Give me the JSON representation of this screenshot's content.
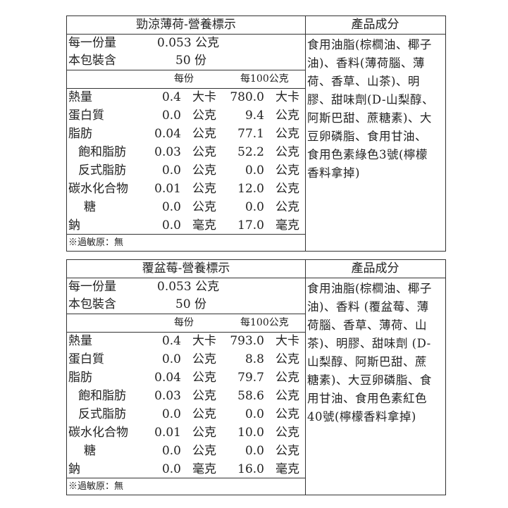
{
  "panels": [
    {
      "title": "勁涼薄荷-營養標示",
      "serving_size_label": "每一份量",
      "serving_size_value": "0.053 公克",
      "servings_label": "本包裝含",
      "servings_value": "50 份",
      "col_per_serving": "每份",
      "col_per_100g": "每100公克",
      "rows": [
        {
          "name": "熱量",
          "v1": "0.4",
          "u1": "大卡",
          "v2": "780.0",
          "u2": "大卡",
          "indent": false
        },
        {
          "name": "蛋白質",
          "v1": "0.0",
          "u1": "公克",
          "v2": "9.4",
          "u2": "公克",
          "indent": false
        },
        {
          "name": "脂肪",
          "v1": "0.04",
          "u1": "公克",
          "v2": "77.1",
          "u2": "公克",
          "indent": false
        },
        {
          "name": "飽和脂肪",
          "v1": "0.03",
          "u1": "公克",
          "v2": "52.2",
          "u2": "公克",
          "indent": true
        },
        {
          "name": "反式脂肪",
          "v1": "0.0",
          "u1": "公克",
          "v2": "0.0",
          "u2": "公克",
          "indent": true
        },
        {
          "name": "碳水化合物",
          "v1": "0.01",
          "u1": "公克",
          "v2": "12.0",
          "u2": "公克",
          "indent": false
        },
        {
          "name": "糖",
          "v1": "0.0",
          "u1": "公克",
          "v2": "0.0",
          "u2": "公克",
          "indent": true
        },
        {
          "name": "鈉",
          "v1": "0.0",
          "u1": "毫克",
          "v2": "17.0",
          "u2": "毫克",
          "indent": false
        }
      ],
      "allergen": "※過敏原：無",
      "ingredients_title": "產品成分",
      "ingredients_lines": [
        "食用油脂(棕櫚油、椰子",
        "油)、香料(薄荷腦、薄",
        "荷、香草、山茶)、明",
        "膠、甜味劑(D-山梨醇、",
        "阿斯巴甜、蔗糖素)、大",
        "豆卵磷脂、食用甘油、",
        "食用色素綠色3號(檸檬",
        "香料拿掉)"
      ]
    },
    {
      "title": "覆盆莓-營養標示",
      "serving_size_label": "每一份量",
      "serving_size_value": "0.053 公克",
      "servings_label": "本包裝含",
      "servings_value": "50 份",
      "col_per_serving": "每份",
      "col_per_100g": "每100公克",
      "rows": [
        {
          "name": "熱量",
          "v1": "0.4",
          "u1": "大卡",
          "v2": "793.0",
          "u2": "大卡",
          "indent": false
        },
        {
          "name": "蛋白質",
          "v1": "0.0",
          "u1": "公克",
          "v2": "8.8",
          "u2": "公克",
          "indent": false
        },
        {
          "name": "脂肪",
          "v1": "0.04",
          "u1": "公克",
          "v2": "79.7",
          "u2": "公克",
          "indent": false
        },
        {
          "name": "飽和脂肪",
          "v1": "0.03",
          "u1": "公克",
          "v2": "58.6",
          "u2": "公克",
          "indent": true
        },
        {
          "name": "反式脂肪",
          "v1": "0.0",
          "u1": "公克",
          "v2": "0.0",
          "u2": "公克",
          "indent": true
        },
        {
          "name": "碳水化合物",
          "v1": "0.01",
          "u1": "公克",
          "v2": "10.0",
          "u2": "公克",
          "indent": false
        },
        {
          "name": "糖",
          "v1": "0.0",
          "u1": "公克",
          "v2": "0.0",
          "u2": "公克",
          "indent": true
        },
        {
          "name": "鈉",
          "v1": "0.0",
          "u1": "毫克",
          "v2": "16.0",
          "u2": "毫克",
          "indent": false
        }
      ],
      "allergen": "※過敏原：無",
      "ingredients_title": "產品成分",
      "ingredients_lines": [
        "食用油脂(棕櫚油、椰子",
        "油)、香料 (覆盆莓、薄",
        "荷腦、香草、薄荷、山",
        "茶)、明膠、甜味劑 (D-",
        "山梨醇、阿斯巴甜、蔗",
        "糖素)、大豆卵磷脂、食",
        "用甘油、食用色素紅色",
        "40號(檸檬香料拿掉)"
      ]
    }
  ]
}
